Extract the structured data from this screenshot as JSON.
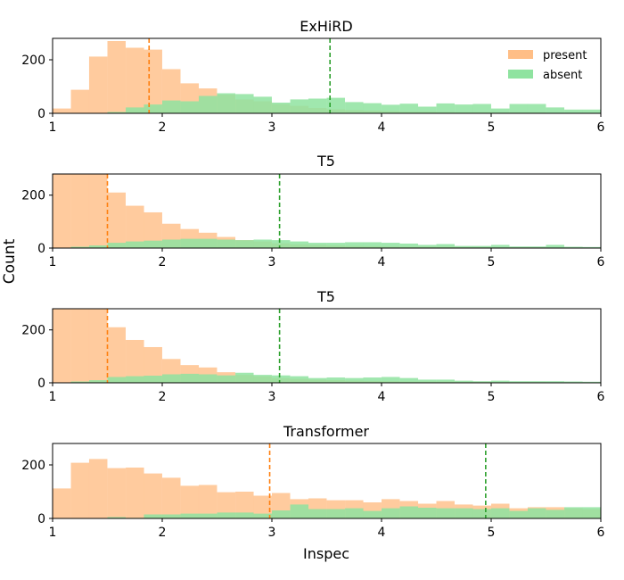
{
  "figure": {
    "ylabel": "Count",
    "xlabel": "Inspec",
    "colors": {
      "present": "#ffbe86",
      "absent": "#8fe3a0",
      "present_line": "#ff7f0e",
      "absent_line": "#2ca02c"
    }
  },
  "chart_data": [
    {
      "type": "histogram",
      "title": "ExHiRD",
      "xlim": [
        1,
        6
      ],
      "ylim": [
        0,
        280
      ],
      "xticks": [
        1,
        2,
        3,
        4,
        5,
        6
      ],
      "yticks": [
        0,
        200
      ],
      "bin_width": 0.1667,
      "legend": {
        "placement": "top-right",
        "entries": [
          "present",
          "absent"
        ]
      },
      "series": [
        {
          "name": "present",
          "mean": 1.88,
          "bin_edges": [
            1.0,
            1.167,
            1.333,
            1.5,
            1.667,
            1.833,
            2.0,
            2.167,
            2.333,
            2.5,
            2.667,
            2.833,
            3.0,
            3.167,
            3.333,
            3.5,
            3.667,
            3.833,
            4.0,
            4.167,
            4.333,
            4.5,
            4.667,
            4.833,
            5.0,
            5.167,
            5.333,
            5.5,
            5.667,
            5.833
          ],
          "values": [
            18,
            88,
            212,
            270,
            245,
            238,
            165,
            112,
            93,
            70,
            52,
            45,
            35,
            28,
            20,
            15,
            12,
            10,
            8,
            6,
            6,
            5,
            4,
            4,
            3,
            3,
            3,
            2,
            2,
            2
          ]
        },
        {
          "name": "absent",
          "mean": 3.53,
          "bin_edges": [
            1.5,
            1.667,
            1.833,
            2.0,
            2.167,
            2.333,
            2.5,
            2.667,
            2.833,
            3.0,
            3.167,
            3.333,
            3.5,
            3.667,
            3.833,
            4.0,
            4.167,
            4.333,
            4.5,
            4.667,
            4.833,
            5.0,
            5.167,
            5.333,
            5.5,
            5.667,
            5.833
          ],
          "values": [
            5,
            22,
            33,
            48,
            45,
            65,
            75,
            72,
            62,
            40,
            52,
            55,
            58,
            42,
            38,
            32,
            36,
            25,
            37,
            33,
            35,
            18,
            35,
            35,
            22,
            14,
            14
          ]
        }
      ]
    },
    {
      "type": "histogram",
      "title": "T5",
      "xlim": [
        1,
        6
      ],
      "ylim": [
        0,
        280
      ],
      "xticks": [
        1,
        2,
        3,
        4,
        5,
        6
      ],
      "yticks": [
        0,
        200
      ],
      "bin_width": 0.1667,
      "series": [
        {
          "name": "present",
          "mean": 1.5,
          "bin_edges": [
            1.0,
            1.167,
            1.333,
            1.5,
            1.667,
            1.833,
            2.0,
            2.167,
            2.333,
            2.5,
            2.667,
            2.833,
            3.0,
            3.167,
            3.333,
            3.5,
            3.667,
            3.833,
            4.0,
            4.167,
            4.333,
            4.5,
            4.667,
            4.833,
            5.0,
            5.167,
            5.333,
            5.5,
            5.667,
            5.833
          ],
          "values": [
            280,
            280,
            280,
            210,
            160,
            135,
            92,
            72,
            58,
            42,
            30,
            25,
            18,
            14,
            12,
            10,
            8,
            7,
            6,
            5,
            5,
            5,
            4,
            4,
            3,
            3,
            3,
            2,
            2,
            2
          ]
        },
        {
          "name": "absent",
          "mean": 3.07,
          "bin_edges": [
            1.167,
            1.333,
            1.5,
            1.667,
            1.833,
            2.0,
            2.167,
            2.333,
            2.5,
            2.667,
            2.833,
            3.0,
            3.167,
            3.333,
            3.5,
            3.667,
            3.833,
            4.0,
            4.167,
            4.333,
            4.5,
            4.667,
            4.833,
            5.0,
            5.167,
            5.333,
            5.5,
            5.667,
            5.833
          ],
          "values": [
            5,
            10,
            20,
            25,
            28,
            32,
            35,
            35,
            32,
            30,
            32,
            30,
            25,
            20,
            20,
            22,
            22,
            20,
            17,
            12,
            15,
            8,
            8,
            12,
            6,
            6,
            12,
            5,
            4
          ]
        }
      ]
    },
    {
      "type": "histogram",
      "title": "T5",
      "xlim": [
        1,
        6
      ],
      "ylim": [
        0,
        280
      ],
      "xticks": [
        1,
        2,
        3,
        4,
        5,
        6
      ],
      "yticks": [
        0,
        200
      ],
      "bin_width": 0.1667,
      "series": [
        {
          "name": "present",
          "mean": 1.5,
          "bin_edges": [
            1.0,
            1.167,
            1.333,
            1.5,
            1.667,
            1.833,
            2.0,
            2.167,
            2.333,
            2.5,
            2.667,
            2.833,
            3.0,
            3.167,
            3.333,
            3.5,
            3.667,
            3.833,
            4.0,
            4.167,
            4.333,
            4.5,
            4.667,
            4.833,
            5.0,
            5.167,
            5.333,
            5.5,
            5.667,
            5.833
          ],
          "values": [
            280,
            280,
            280,
            210,
            162,
            135,
            90,
            67,
            58,
            40,
            30,
            25,
            18,
            15,
            12,
            10,
            8,
            7,
            6,
            5,
            5,
            5,
            4,
            4,
            3,
            3,
            3,
            2,
            2,
            2
          ]
        },
        {
          "name": "absent",
          "mean": 3.07,
          "bin_edges": [
            1.167,
            1.333,
            1.5,
            1.667,
            1.833,
            2.0,
            2.167,
            2.333,
            2.5,
            2.667,
            2.833,
            3.0,
            3.167,
            3.333,
            3.5,
            3.667,
            3.833,
            4.0,
            4.167,
            4.333,
            4.5,
            4.667,
            4.833,
            5.0,
            5.167,
            5.333,
            5.5,
            5.667,
            5.833
          ],
          "values": [
            5,
            10,
            22,
            25,
            27,
            32,
            34,
            32,
            28,
            38,
            30,
            28,
            25,
            18,
            20,
            18,
            20,
            22,
            18,
            12,
            12,
            8,
            6,
            8,
            6,
            6,
            6,
            5,
            4
          ]
        }
      ]
    },
    {
      "type": "histogram",
      "title": "Transformer",
      "xlim": [
        1,
        6
      ],
      "ylim": [
        0,
        280
      ],
      "xticks": [
        1,
        2,
        3,
        4,
        5,
        6
      ],
      "yticks": [
        0,
        200
      ],
      "bin_width": 0.1667,
      "series": [
        {
          "name": "present",
          "mean": 2.98,
          "bin_edges": [
            1.0,
            1.167,
            1.333,
            1.5,
            1.667,
            1.833,
            2.0,
            2.167,
            2.333,
            2.5,
            2.667,
            2.833,
            3.0,
            3.167,
            3.333,
            3.5,
            3.667,
            3.833,
            4.0,
            4.167,
            4.333,
            4.5,
            4.667,
            4.833,
            5.0,
            5.167,
            5.333,
            5.5,
            5.667,
            5.833
          ],
          "values": [
            112,
            208,
            222,
            188,
            190,
            168,
            152,
            122,
            125,
            98,
            100,
            85,
            95,
            72,
            75,
            68,
            68,
            60,
            72,
            65,
            55,
            65,
            52,
            48,
            55,
            38,
            42,
            42,
            38,
            35
          ]
        },
        {
          "name": "absent",
          "mean": 4.95,
          "bin_edges": [
            1.5,
            1.667,
            1.833,
            2.0,
            2.167,
            2.333,
            2.5,
            2.667,
            2.833,
            3.0,
            3.167,
            3.333,
            3.5,
            3.667,
            3.833,
            4.0,
            4.167,
            4.333,
            4.5,
            4.667,
            4.833,
            5.0,
            5.167,
            5.333,
            5.5,
            5.667,
            5.833
          ],
          "values": [
            5,
            2,
            15,
            15,
            18,
            18,
            22,
            22,
            18,
            30,
            52,
            35,
            35,
            38,
            28,
            38,
            45,
            40,
            38,
            38,
            35,
            38,
            28,
            38,
            32,
            42,
            42
          ]
        }
      ]
    }
  ]
}
